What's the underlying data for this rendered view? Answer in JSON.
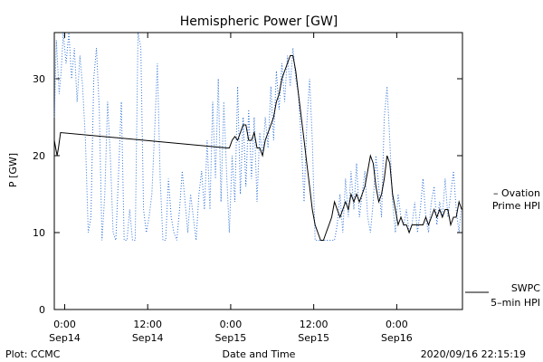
{
  "chart_data": {
    "type": "line",
    "title": "Hemispheric Power [GW]",
    "xlabel": "Date and Time",
    "ylabel": "P [GW]",
    "ylim": [
      0,
      36
    ],
    "yticks": [
      0,
      10,
      20,
      30
    ],
    "x_unit": "hours since 2020-09-14 00:00",
    "xlim": [
      -1.5,
      57.5
    ],
    "xticks": [
      {
        "x": 0,
        "line1": "0:00",
        "line2": "Sep14"
      },
      {
        "x": 12,
        "line1": "12:00",
        "line2": "Sep14"
      },
      {
        "x": 24,
        "line1": "0:00",
        "line2": "Sep15"
      },
      {
        "x": 36,
        "line1": "12:00",
        "line2": "Sep15"
      },
      {
        "x": 48,
        "line1": "0:00",
        "line2": "Sep16"
      },
      {
        "x": 60,
        "line1": "12:00",
        "line2": "Sep16"
      }
    ],
    "series": [
      {
        "name": "Ovation Prime HPI",
        "style": "dotted",
        "color": "#2a6fd6",
        "points": [
          [
            -1.5,
            25
          ],
          [
            -1.2,
            35
          ],
          [
            -0.8,
            28
          ],
          [
            -0.5,
            31
          ],
          [
            -0.2,
            36
          ],
          [
            0.2,
            32
          ],
          [
            0.6,
            36
          ],
          [
            1,
            30
          ],
          [
            1.4,
            34
          ],
          [
            1.8,
            27
          ],
          [
            2.2,
            33
          ],
          [
            2.6,
            29
          ],
          [
            3,
            22
          ],
          [
            3.4,
            10
          ],
          [
            3.8,
            12
          ],
          [
            4.2,
            30
          ],
          [
            4.6,
            34
          ],
          [
            5,
            26
          ],
          [
            5.4,
            9
          ],
          [
            5.8,
            15
          ],
          [
            6.2,
            27
          ],
          [
            6.6,
            20
          ],
          [
            7,
            10
          ],
          [
            7.4,
            9
          ],
          [
            7.8,
            18
          ],
          [
            8.2,
            27
          ],
          [
            8.6,
            9
          ],
          [
            9,
            9
          ],
          [
            9.4,
            13
          ],
          [
            9.8,
            9
          ],
          [
            10.2,
            9
          ],
          [
            10.6,
            36
          ],
          [
            11,
            34
          ],
          [
            11.4,
            13
          ],
          [
            11.8,
            10
          ],
          [
            12.2,
            12
          ],
          [
            12.6,
            15
          ],
          [
            13,
            23
          ],
          [
            13.4,
            32
          ],
          [
            13.8,
            17
          ],
          [
            14.2,
            9
          ],
          [
            14.6,
            9
          ],
          [
            15,
            17
          ],
          [
            15.4,
            12
          ],
          [
            15.8,
            10
          ],
          [
            16.2,
            9
          ],
          [
            16.6,
            13
          ],
          [
            17,
            18
          ],
          [
            17.4,
            14
          ],
          [
            17.8,
            10
          ],
          [
            18.2,
            15
          ],
          [
            18.6,
            12
          ],
          [
            19,
            9
          ],
          [
            19.4,
            15
          ],
          [
            19.8,
            18
          ],
          [
            20.2,
            13
          ],
          [
            20.6,
            22
          ],
          [
            21,
            13
          ],
          [
            21.4,
            27
          ],
          [
            21.8,
            17
          ],
          [
            22.2,
            30
          ],
          [
            22.6,
            14
          ],
          [
            23,
            27
          ],
          [
            23.4,
            18
          ],
          [
            23.8,
            10
          ],
          [
            24.2,
            20
          ],
          [
            24.6,
            14
          ],
          [
            25,
            29
          ],
          [
            25.4,
            15
          ],
          [
            25.8,
            25
          ],
          [
            26.2,
            16
          ],
          [
            26.6,
            26
          ],
          [
            27,
            17
          ],
          [
            27.4,
            25
          ],
          [
            27.8,
            14
          ],
          [
            28.2,
            23
          ],
          [
            28.6,
            20
          ],
          [
            29,
            25
          ],
          [
            29.4,
            21
          ],
          [
            29.8,
            29
          ],
          [
            30.2,
            22
          ],
          [
            30.6,
            31
          ],
          [
            31,
            26
          ],
          [
            31.4,
            32
          ],
          [
            31.8,
            27
          ],
          [
            32.2,
            33
          ],
          [
            32.6,
            29
          ],
          [
            33,
            34
          ],
          [
            33.4,
            30
          ],
          [
            33.8,
            28
          ],
          [
            34.2,
            22
          ],
          [
            34.6,
            14
          ],
          [
            35,
            24
          ],
          [
            35.4,
            30
          ],
          [
            35.8,
            22
          ],
          [
            36.2,
            9
          ],
          [
            37,
            9
          ],
          [
            38,
            9
          ],
          [
            39,
            9
          ],
          [
            39.4,
            11
          ],
          [
            39.8,
            15
          ],
          [
            40.2,
            10
          ],
          [
            40.6,
            17
          ],
          [
            41,
            12
          ],
          [
            41.4,
            18
          ],
          [
            41.8,
            13
          ],
          [
            42.2,
            19
          ],
          [
            42.6,
            12
          ],
          [
            43,
            15
          ],
          [
            43.4,
            18
          ],
          [
            43.8,
            12
          ],
          [
            44.2,
            10
          ],
          [
            44.6,
            14
          ],
          [
            45,
            20
          ],
          [
            45.4,
            16
          ],
          [
            45.8,
            12
          ],
          [
            46.2,
            25
          ],
          [
            46.6,
            29
          ],
          [
            47,
            22
          ],
          [
            47.4,
            14
          ],
          [
            47.8,
            10
          ],
          [
            48.2,
            15
          ],
          [
            48.6,
            12
          ],
          [
            49,
            11
          ],
          [
            49.4,
            13
          ],
          [
            49.8,
            10
          ],
          [
            50.2,
            11
          ],
          [
            50.6,
            14
          ],
          [
            51,
            10
          ],
          [
            51.4,
            13
          ],
          [
            51.8,
            17
          ],
          [
            52.2,
            12
          ],
          [
            52.6,
            10
          ],
          [
            53,
            14
          ],
          [
            53.4,
            16
          ],
          [
            53.8,
            11
          ],
          [
            54.2,
            14
          ],
          [
            54.6,
            12
          ],
          [
            55,
            17
          ],
          [
            55.4,
            12
          ],
          [
            55.8,
            15
          ],
          [
            56.2,
            18
          ],
          [
            56.6,
            13
          ],
          [
            57,
            10
          ],
          [
            57.3,
            13
          ]
        ]
      },
      {
        "name": "SWPC 5-min HPI",
        "style": "solid",
        "color": "#000000",
        "points": [
          [
            -1.5,
            22
          ],
          [
            -1.3,
            21
          ],
          [
            -1.1,
            20
          ],
          [
            -0.9,
            21
          ],
          [
            -0.6,
            23
          ],
          [
            23.5,
            21
          ],
          [
            23.8,
            21
          ],
          [
            24.2,
            22
          ],
          [
            24.6,
            22.5
          ],
          [
            25,
            22
          ],
          [
            25.4,
            23
          ],
          [
            25.8,
            24
          ],
          [
            26.2,
            24
          ],
          [
            26.6,
            22
          ],
          [
            27,
            22
          ],
          [
            27.4,
            23
          ],
          [
            27.8,
            21
          ],
          [
            28.2,
            21
          ],
          [
            28.6,
            20
          ],
          [
            29,
            22
          ],
          [
            29.4,
            23
          ],
          [
            29.8,
            24
          ],
          [
            30.2,
            25
          ],
          [
            30.6,
            27
          ],
          [
            31,
            28
          ],
          [
            31.4,
            30
          ],
          [
            31.8,
            31
          ],
          [
            32.2,
            32
          ],
          [
            32.6,
            33
          ],
          [
            33,
            33
          ],
          [
            33.4,
            31
          ],
          [
            33.8,
            28
          ],
          [
            34.2,
            25
          ],
          [
            34.6,
            22
          ],
          [
            35,
            19
          ],
          [
            35.4,
            16
          ],
          [
            35.8,
            13
          ],
          [
            36.2,
            11
          ],
          [
            36.6,
            10
          ],
          [
            37,
            9
          ],
          [
            37.4,
            9
          ],
          [
            37.8,
            10
          ],
          [
            38.2,
            11
          ],
          [
            38.6,
            12
          ],
          [
            39,
            14
          ],
          [
            39.4,
            13
          ],
          [
            39.8,
            12
          ],
          [
            40.2,
            13
          ],
          [
            40.6,
            14
          ],
          [
            41,
            13
          ],
          [
            41.4,
            15
          ],
          [
            41.8,
            14
          ],
          [
            42.2,
            15
          ],
          [
            42.6,
            14
          ],
          [
            43,
            15
          ],
          [
            43.4,
            16
          ],
          [
            43.8,
            18
          ],
          [
            44.2,
            20
          ],
          [
            44.6,
            19
          ],
          [
            45,
            16
          ],
          [
            45.4,
            14
          ],
          [
            45.8,
            15
          ],
          [
            46.2,
            17
          ],
          [
            46.6,
            20
          ],
          [
            47,
            19
          ],
          [
            47.4,
            15
          ],
          [
            47.8,
            13
          ],
          [
            48.2,
            11
          ],
          [
            48.6,
            12
          ],
          [
            49,
            11
          ],
          [
            49.4,
            11
          ],
          [
            49.8,
            10
          ],
          [
            50.2,
            11
          ],
          [
            50.6,
            11
          ],
          [
            51,
            11
          ],
          [
            51.4,
            11
          ],
          [
            51.8,
            11
          ],
          [
            52.2,
            12
          ],
          [
            52.6,
            11
          ],
          [
            53,
            12
          ],
          [
            53.4,
            13
          ],
          [
            53.8,
            12
          ],
          [
            54.2,
            13
          ],
          [
            54.6,
            12
          ],
          [
            55,
            13
          ],
          [
            55.4,
            13
          ],
          [
            55.8,
            11
          ],
          [
            56.2,
            12
          ],
          [
            56.6,
            12
          ],
          [
            57,
            14
          ],
          [
            57.4,
            13
          ]
        ]
      }
    ],
    "legend": [
      {
        "line1": "– Ovation",
        "line2": "Prime HPI",
        "color": "#2a6fd6"
      },
      {
        "line1": "SWPC",
        "line2": "5–min HPI",
        "color": "#000000"
      }
    ],
    "footer_left": "Plot: CCMC",
    "footer_right": "2020/09/16 22:15:19"
  }
}
